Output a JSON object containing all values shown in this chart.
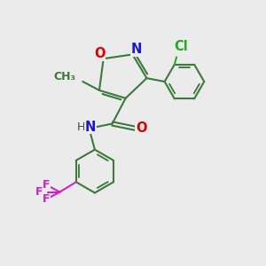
{
  "background_color": "#ebebeb",
  "bond_color": "#3a7a3a",
  "bond_lw": 1.5,
  "atom_colors": {
    "O": "#dd0000",
    "N": "#1a1acc",
    "H": "#444444",
    "Cl": "#22aa22",
    "F": "#cc22cc",
    "C": "#3a7a3a"
  },
  "font_size": 10.5,
  "font_size_small": 9.0,
  "font_size_methyl": 9.0
}
